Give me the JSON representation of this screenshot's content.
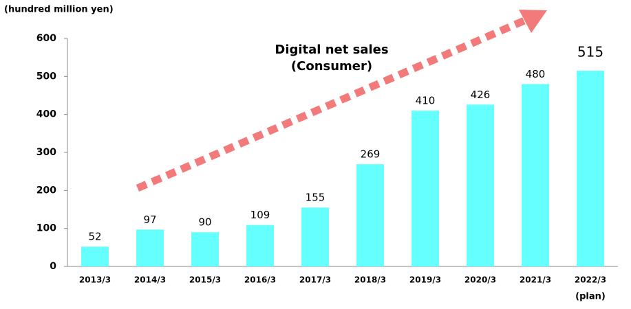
{
  "chart_data": {
    "type": "bar",
    "y_label": "(hundred million yen)",
    "annotation": [
      "Digital net sales",
      "(Consumer)"
    ],
    "categories": [
      "2013/3",
      "2014/3",
      "2015/3",
      "2016/3",
      "2017/3",
      "2018/3",
      "2019/3",
      "2020/3",
      "2021/3",
      "2022/3"
    ],
    "category_note": "(plan)",
    "values": [
      52,
      97,
      90,
      109,
      155,
      269,
      410,
      426,
      480,
      515
    ],
    "color": "#66ffff",
    "highlight_color": "#ee1111",
    "ylim": [
      0,
      600
    ],
    "yticks": [
      0,
      100,
      200,
      300,
      400,
      500,
      600
    ],
    "grid": false
  }
}
